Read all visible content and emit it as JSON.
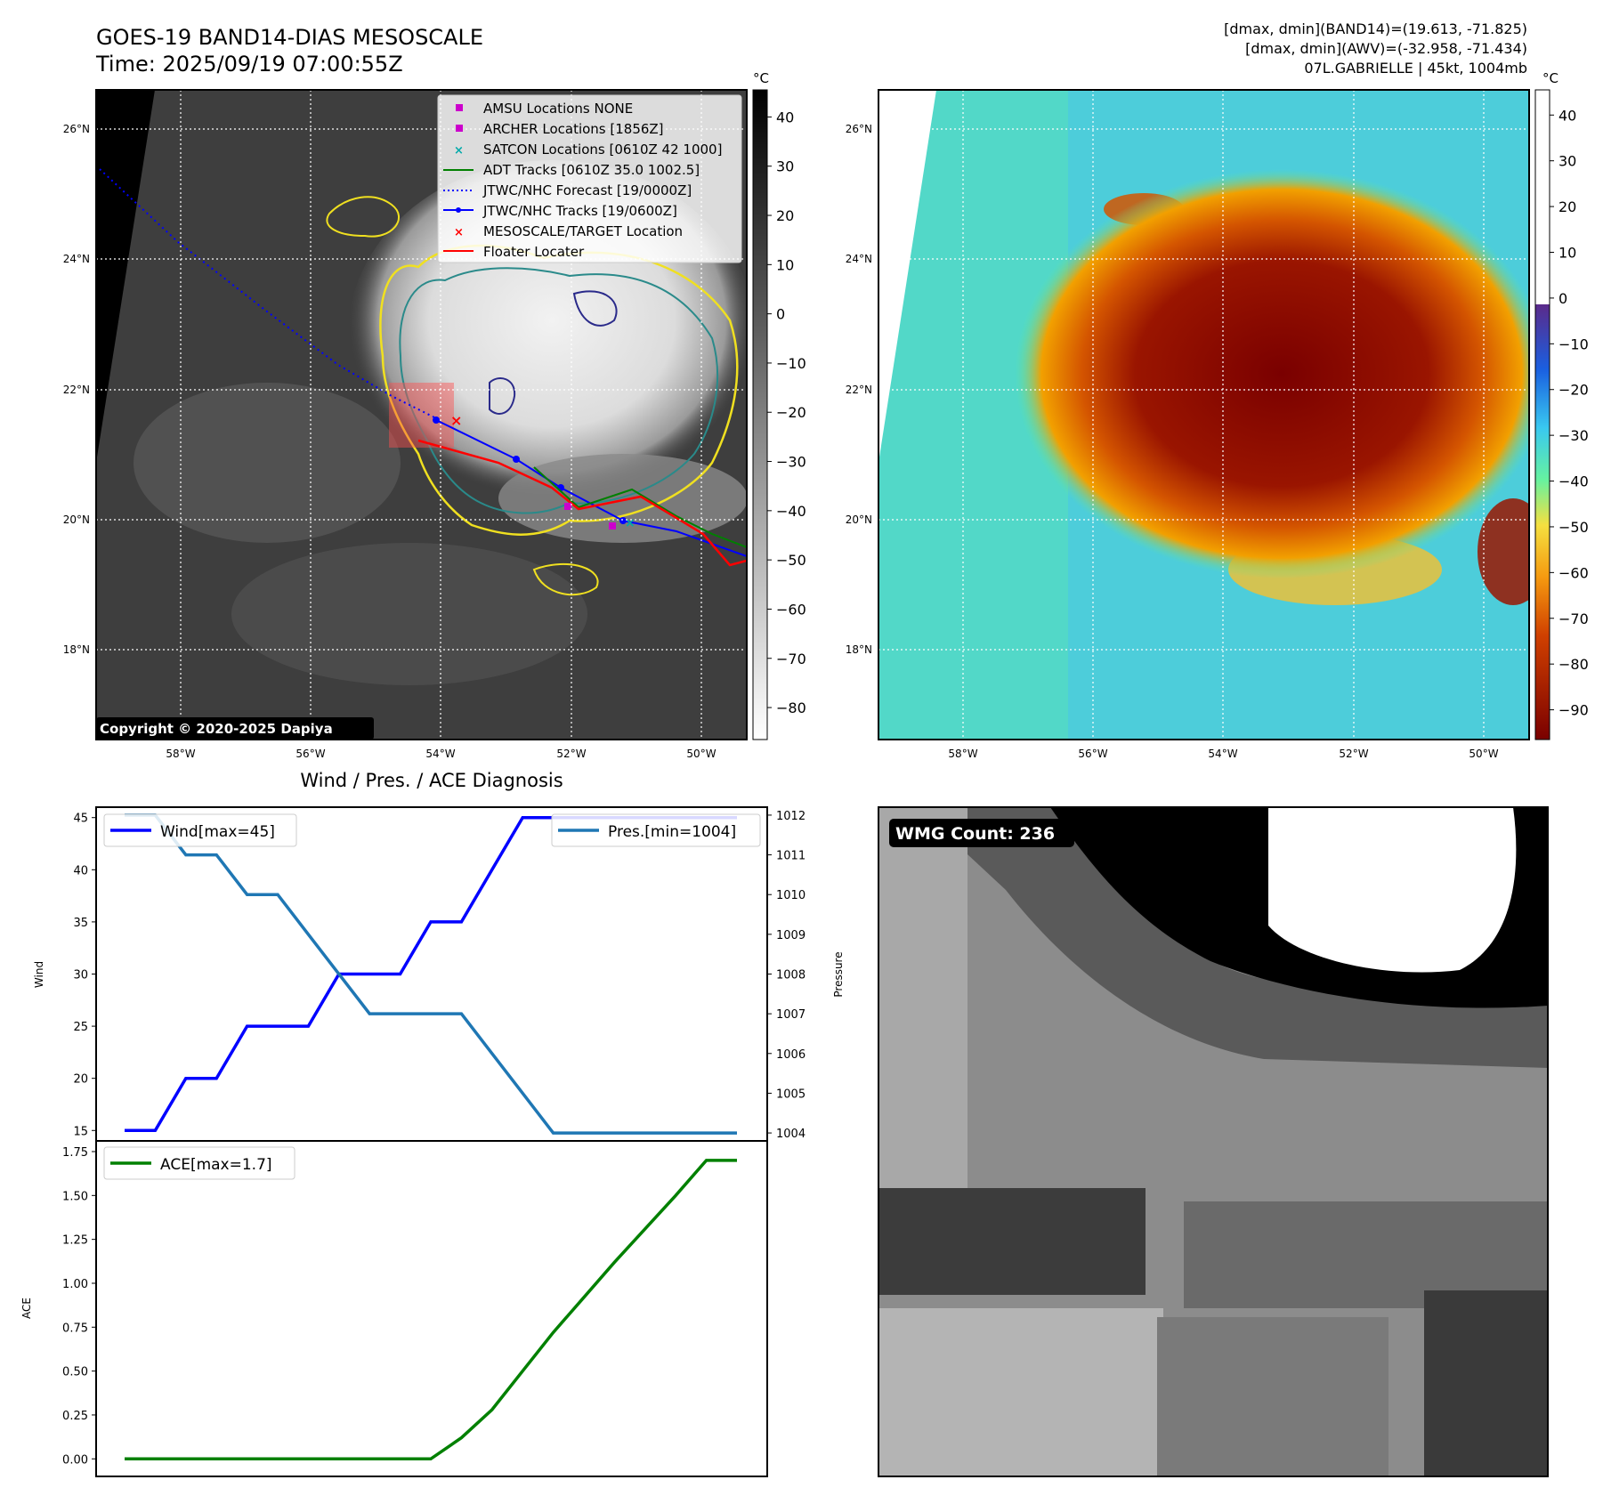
{
  "header": {
    "title_line1": "GOES-19 BAND14-DIAS MESOSCALE",
    "title_line2": "Time: 2025/09/19 07:00:55Z",
    "stats_line1": "[dmax, dmin](BAND14)=(19.613, -71.825)",
    "stats_line2": "[dmax, dmin](AWV)=(-32.958, -71.434)",
    "stats_line3": "07L.GABRIELLE | 45kt, 1004mb"
  },
  "map_axes": {
    "lat_labels": [
      "26°N",
      "24°N",
      "22°N",
      "20°N",
      "18°N"
    ],
    "lon_labels": [
      "58°W",
      "56°W",
      "54°W",
      "52°W",
      "50°W"
    ]
  },
  "left_map": {
    "copyright": "Copyright © 2020-2025 Dapiya",
    "legend": [
      {
        "label": "AMSU Locations NONE",
        "kind": "square",
        "color": "#cc00cc"
      },
      {
        "label": "ARCHER Locations [1856Z]",
        "kind": "square",
        "color": "#cc00cc"
      },
      {
        "label": "SATCON Locations [0610Z 42 1000]",
        "kind": "x",
        "color": "#00aaaa"
      },
      {
        "label": "ADT Tracks [0610Z 35.0 1002.5]",
        "kind": "line",
        "color": "#008000"
      },
      {
        "label": "JTWC/NHC Forecast [19/0000Z]",
        "kind": "dotted",
        "color": "#0000ff"
      },
      {
        "label": "JTWC/NHC Tracks [19/0600Z]",
        "kind": "line-dot",
        "color": "#0000ff"
      },
      {
        "label": "MESOSCALE/TARGET Location",
        "kind": "x",
        "color": "#ff0000"
      },
      {
        "label": "Floater Locater",
        "kind": "line",
        "color": "#ff0000"
      }
    ],
    "colorbar": {
      "unit": "°C",
      "ticks": [
        "40",
        "30",
        "20",
        "10",
        "0",
        "−10",
        "−20",
        "−30",
        "−40",
        "−50",
        "−60",
        "−70",
        "−80"
      ]
    }
  },
  "right_map": {
    "colorbar": {
      "unit": "°C",
      "ticks": [
        "40",
        "30",
        "20",
        "10",
        "0",
        "−10",
        "−20",
        "−30",
        "−40",
        "−50",
        "−60",
        "−70",
        "−80",
        "−90"
      ]
    }
  },
  "wmg_panel": {
    "label": "WMG Count: 236"
  },
  "colors": {
    "wind": "#0000ff",
    "pressure": "#1f77b4",
    "ace": "#008000"
  },
  "chart_data": [
    {
      "type": "line",
      "title": "Wind / Pres. / ACE Diagnosis",
      "ylabel": "Wind",
      "ylabel_right": "Pressure",
      "ylim": [
        14,
        46
      ],
      "ylim_right": [
        1003.8,
        1012.2
      ],
      "y_ticks": [
        15,
        20,
        25,
        30,
        35,
        40,
        45
      ],
      "y_ticks_right": [
        1004,
        1005,
        1006,
        1007,
        1008,
        1009,
        1010,
        1011,
        1012
      ],
      "x": [
        0,
        1,
        2,
        3,
        4,
        5,
        6,
        7,
        8,
        9,
        10,
        11,
        12,
        13,
        14,
        15,
        16,
        17,
        18,
        19,
        20
      ],
      "series": [
        {
          "name": "Wind[max=45]",
          "axis": "left",
          "values": [
            15,
            15,
            20,
            20,
            25,
            25,
            25,
            30,
            30,
            30,
            35,
            35,
            40,
            45,
            45,
            45,
            45,
            45,
            45,
            45,
            45
          ]
        },
        {
          "name": "Pres.[min=1004]",
          "axis": "right",
          "values": [
            1012,
            1012,
            1011,
            1011,
            1010,
            1010,
            1009,
            1008,
            1007,
            1007,
            1007,
            1007,
            1006,
            1005,
            1004,
            1004,
            1004,
            1004,
            1004,
            1004,
            1004
          ]
        }
      ]
    },
    {
      "type": "line",
      "ylabel": "ACE",
      "ylim": [
        -0.1,
        1.75
      ],
      "y_ticks": [
        "0.00",
        "0.25",
        "0.50",
        "0.75",
        "1.00",
        "1.25",
        "1.50",
        "1.75"
      ],
      "x": [
        0,
        1,
        2,
        3,
        4,
        5,
        6,
        7,
        8,
        9,
        10,
        11,
        12,
        13,
        14,
        15,
        16,
        17,
        18,
        19,
        20
      ],
      "series": [
        {
          "name": "ACE[max=1.7]",
          "values": [
            0,
            0,
            0,
            0,
            0,
            0,
            0,
            0,
            0,
            0,
            0,
            0.12,
            0.28,
            0.5,
            0.72,
            0.92,
            1.12,
            1.31,
            1.5,
            1.7,
            1.7
          ]
        }
      ]
    }
  ]
}
